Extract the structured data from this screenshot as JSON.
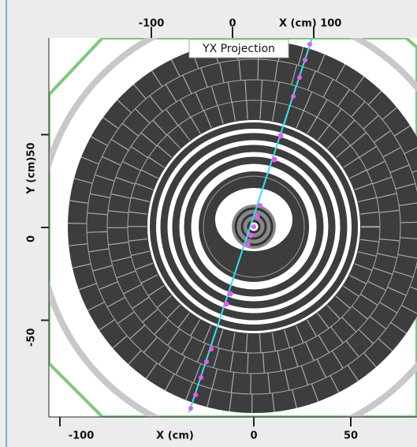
{
  "view": {
    "title": "YX Projection",
    "top_axis": {
      "ticks": [
        -100,
        0,
        {
          "value": 100,
          "label": "X (cm) 100"
        }
      ]
    },
    "left_axis": {
      "ticks": [
        {
          "value": 50,
          "label": "Y (cm)50"
        },
        0,
        -50
      ]
    },
    "bottom_axis": {
      "title": "X (cm)",
      "ticks": [
        -100,
        0,
        50
      ]
    }
  }
}
